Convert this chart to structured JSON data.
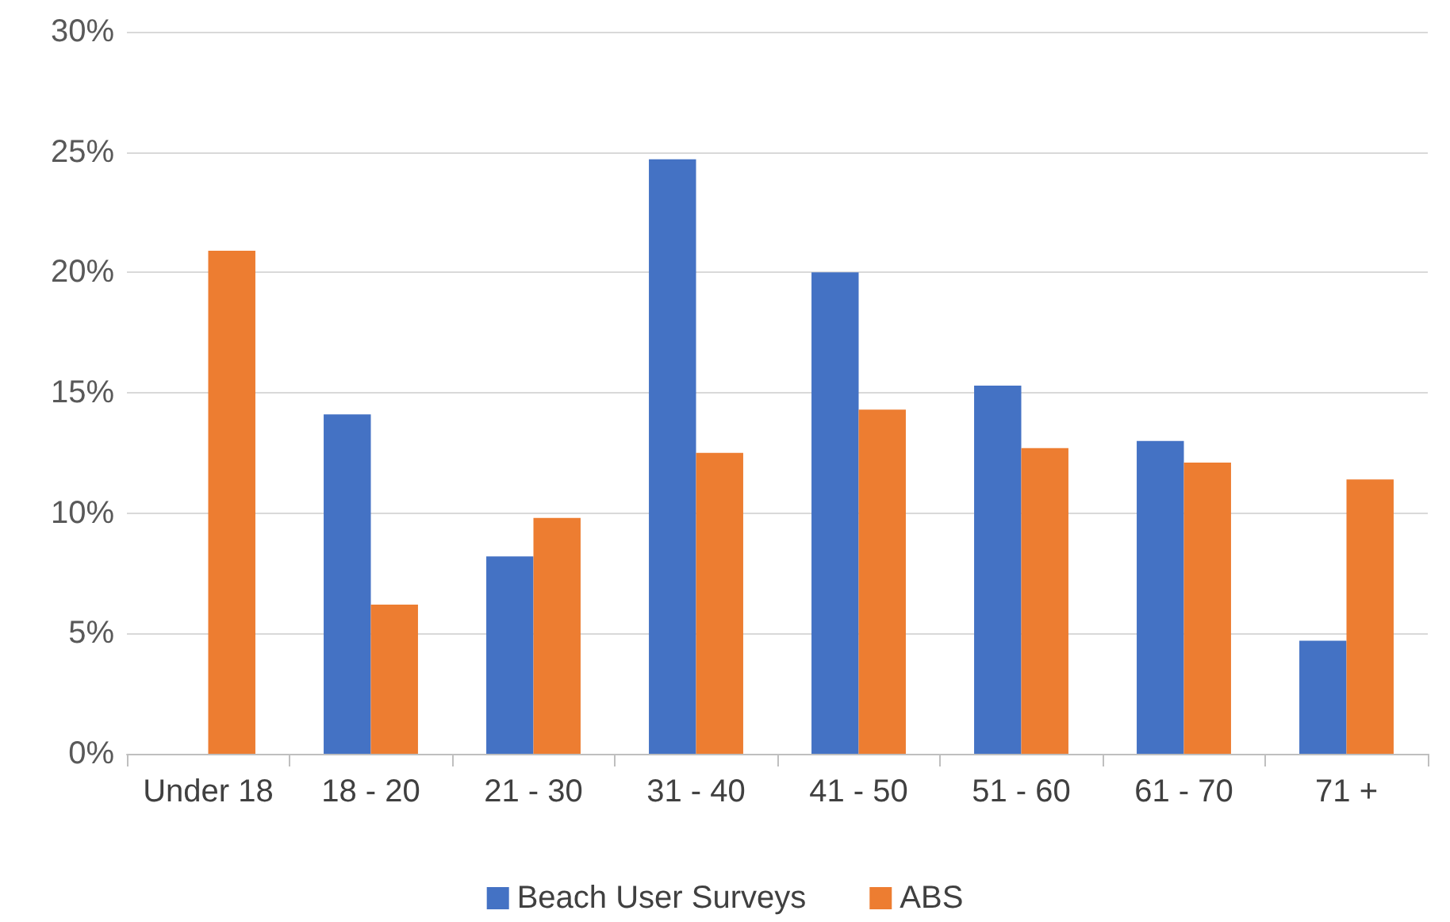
{
  "chart_data": {
    "type": "bar",
    "categories": [
      "Under 18",
      "18 - 20",
      "21 - 30",
      "31 - 40",
      "41 - 50",
      "51 - 60",
      "61 - 70",
      "71 +"
    ],
    "series": [
      {
        "name": "Beach User Surveys",
        "color": "#4472c4",
        "values": [
          null,
          14.1,
          8.2,
          24.7,
          20.0,
          15.3,
          13.0,
          4.7
        ]
      },
      {
        "name": "ABS",
        "color": "#ed7d31",
        "values": [
          20.9,
          6.2,
          9.8,
          12.5,
          14.3,
          12.7,
          12.1,
          11.4
        ]
      }
    ],
    "ylim": [
      0,
      30
    ],
    "yticks": [
      {
        "value": 0,
        "label": "0%"
      },
      {
        "value": 5,
        "label": "5%"
      },
      {
        "value": 10,
        "label": "10%"
      },
      {
        "value": 15,
        "label": "15%"
      },
      {
        "value": 20,
        "label": "20%"
      },
      {
        "value": 25,
        "label": "25%"
      },
      {
        "value": 30,
        "label": "30%"
      }
    ],
    "grid": "y",
    "legend": "bottom"
  }
}
